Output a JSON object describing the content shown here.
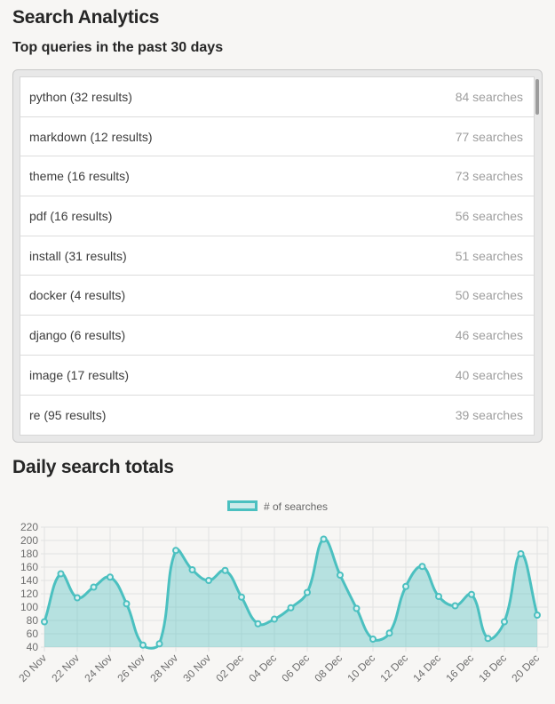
{
  "page": {
    "title": "Search Analytics",
    "subtitle": "Top queries in the past 30 days",
    "chart_heading": "Daily search totals"
  },
  "queries": {
    "items": [
      {
        "query": "python (32 results)",
        "searches": "84 searches"
      },
      {
        "query": "markdown (12 results)",
        "searches": "77 searches"
      },
      {
        "query": "theme (16 results)",
        "searches": "73 searches"
      },
      {
        "query": "pdf (16 results)",
        "searches": "56 searches"
      },
      {
        "query": "install (31 results)",
        "searches": "51 searches"
      },
      {
        "query": "docker (4 results)",
        "searches": "50 searches"
      },
      {
        "query": "django (6 results)",
        "searches": "46 searches"
      },
      {
        "query": "image (17 results)",
        "searches": "40 searches"
      },
      {
        "query": "re (95 results)",
        "searches": "39 searches"
      }
    ]
  },
  "chart_data": {
    "type": "area",
    "title": "Daily search totals",
    "legend_position": "top",
    "grid": true,
    "x": [
      "20 Nov",
      "21 Nov",
      "22 Nov",
      "23 Nov",
      "24 Nov",
      "25 Nov",
      "26 Nov",
      "27 Nov",
      "28 Nov",
      "29 Nov",
      "30 Nov",
      "01 Dec",
      "02 Dec",
      "03 Dec",
      "04 Dec",
      "05 Dec",
      "06 Dec",
      "07 Dec",
      "08 Dec",
      "09 Dec",
      "10 Dec",
      "11 Dec",
      "12 Dec",
      "13 Dec",
      "14 Dec",
      "15 Dec",
      "16 Dec",
      "17 Dec",
      "18 Dec",
      "19 Dec",
      "20 Dec"
    ],
    "x_tick_every": 2,
    "series": [
      {
        "name": "# of searches",
        "values": [
          78,
          150,
          114,
          130,
          145,
          105,
          43,
          45,
          185,
          156,
          140,
          155,
          115,
          75,
          82,
          99,
          122,
          202,
          148,
          98,
          52,
          61,
          131,
          161,
          116,
          102,
          119,
          53,
          78,
          180,
          88
        ]
      }
    ],
    "ylim": [
      40,
      220
    ],
    "yticks": [
      40,
      60,
      80,
      100,
      120,
      140,
      160,
      180,
      200,
      220
    ],
    "colors": {
      "line": "#4bc0c0",
      "fill": "rgba(75,192,192,0.38)",
      "point_fill": "#dff2f2",
      "legend_fill": "#cdeaea",
      "grid": "#e2e2e2",
      "tick_text": "#6e6e6e"
    }
  }
}
